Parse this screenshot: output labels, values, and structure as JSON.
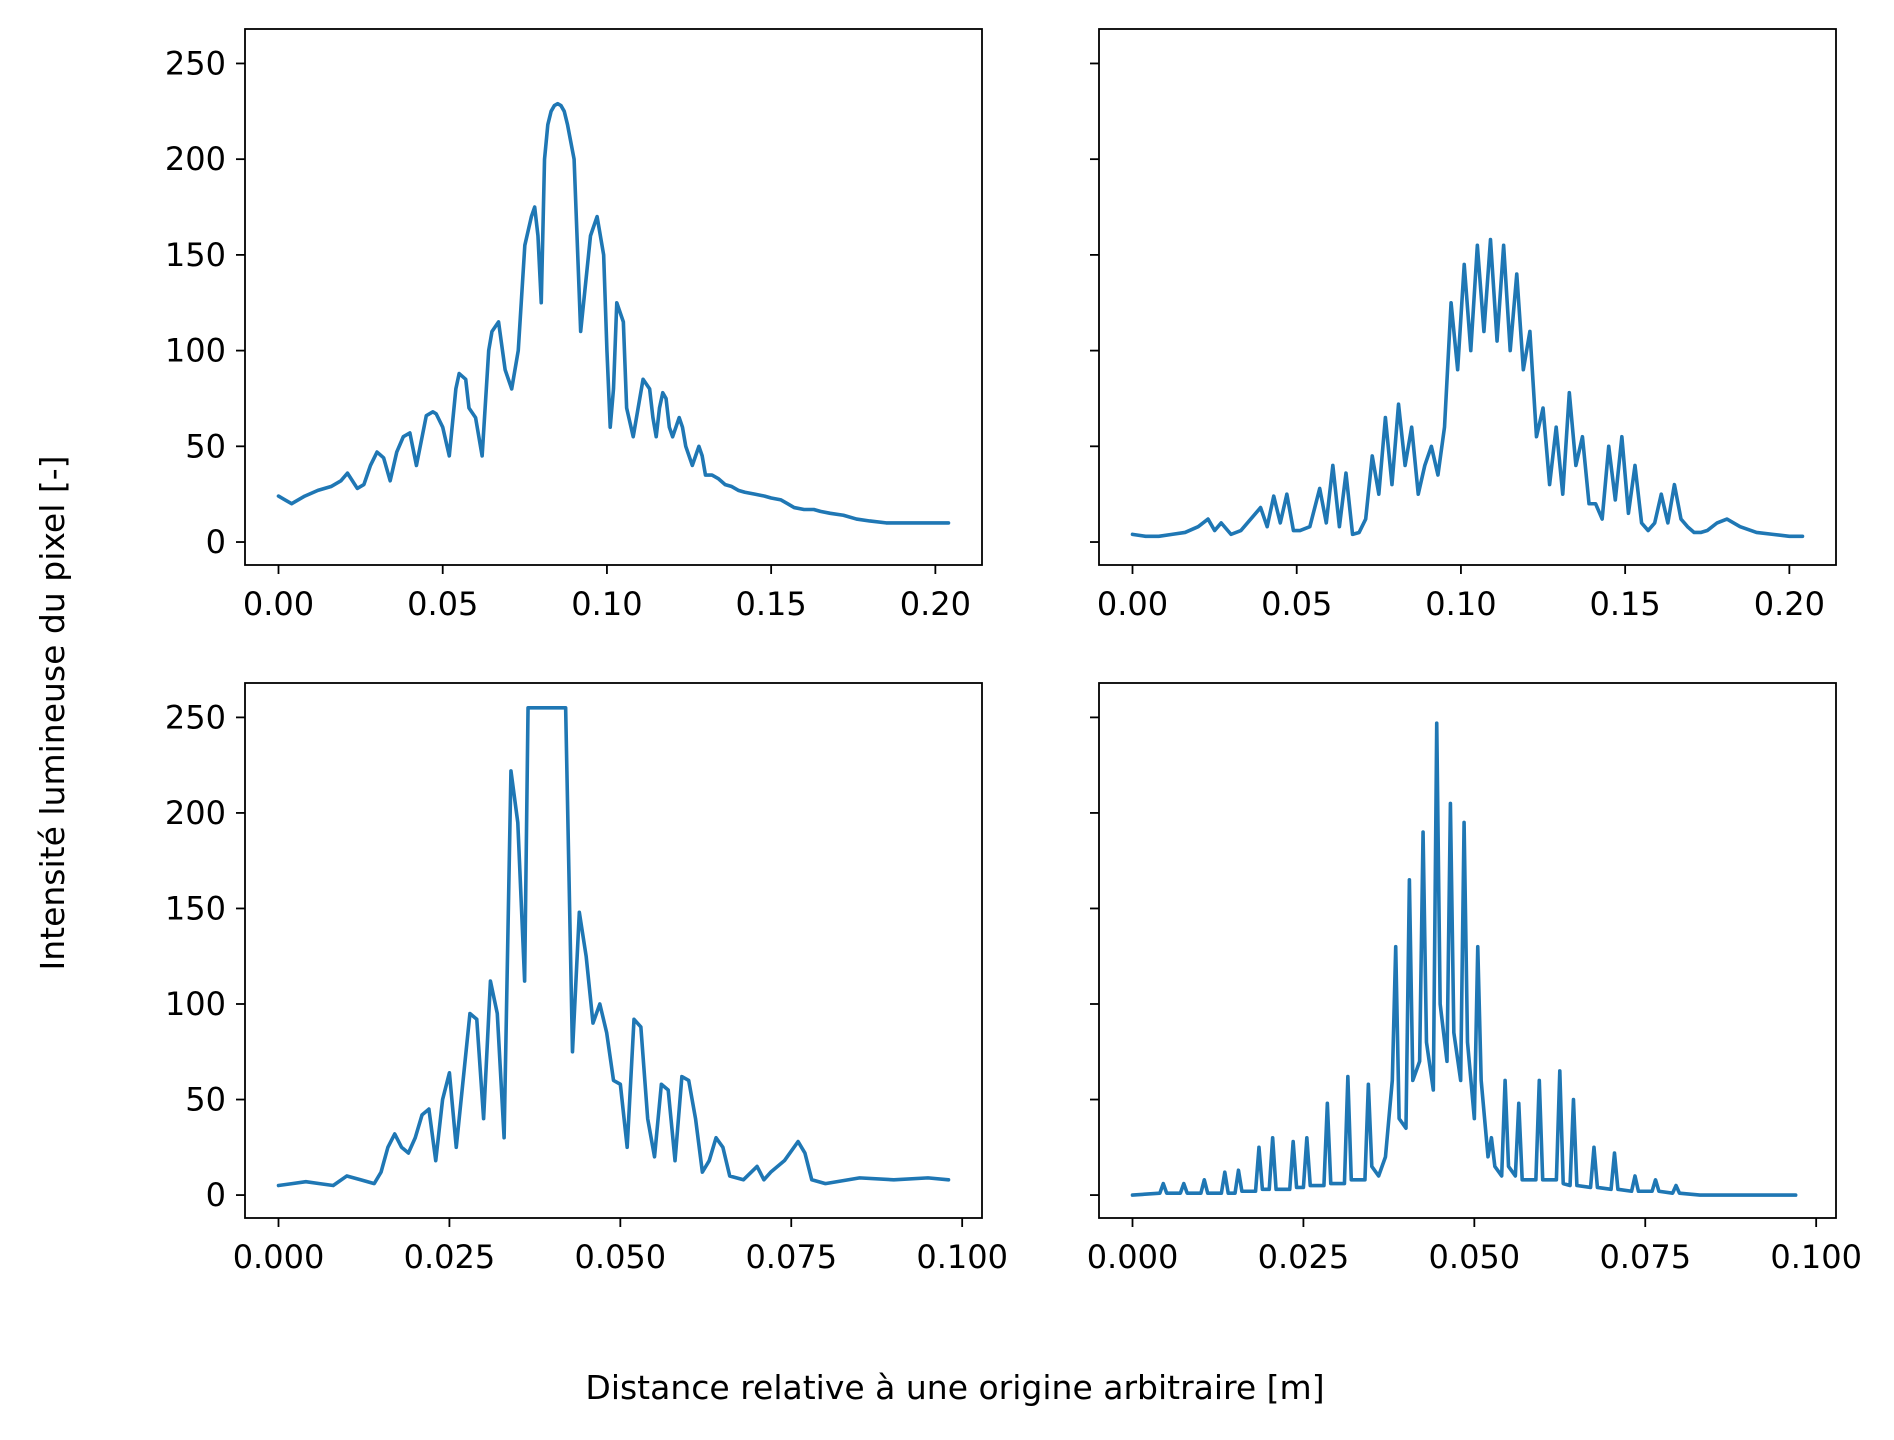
{
  "figure": {
    "ylabel": "Intensité lumineuse du pixel [-]",
    "xlabel": "Distance relative à une origine arbitraire [m]",
    "line_color": "#1f77b4"
  },
  "chart_data": [
    {
      "type": "line",
      "position": "top-left",
      "ylim": [
        -12,
        268
      ],
      "xlim": [
        -0.0102,
        0.2142
      ],
      "xticks": [
        0.0,
        0.05,
        0.1,
        0.15,
        0.2
      ],
      "xtick_labels": [
        "0.00",
        "0.05",
        "0.10",
        "0.15",
        "0.20"
      ],
      "yticks": [
        0,
        50,
        100,
        150,
        200,
        250
      ],
      "ytick_labels": [
        "0",
        "50",
        "100",
        "150",
        "200",
        "250"
      ],
      "show_y_tick_labels": true,
      "series": [
        {
          "x": [
            0.0,
            0.002,
            0.004,
            0.008,
            0.012,
            0.016,
            0.019,
            0.021,
            0.024,
            0.026,
            0.028,
            0.03,
            0.032,
            0.034,
            0.036,
            0.038,
            0.04,
            0.042,
            0.045,
            0.047,
            0.048,
            0.05,
            0.052,
            0.054,
            0.055,
            0.057,
            0.058,
            0.06,
            0.062,
            0.064,
            0.065,
            0.067,
            0.069,
            0.071,
            0.073,
            0.075,
            0.077,
            0.078,
            0.079,
            0.08,
            0.081,
            0.082,
            0.083,
            0.084,
            0.085,
            0.086,
            0.087,
            0.088,
            0.09,
            0.092,
            0.095,
            0.097,
            0.099,
            0.1,
            0.101,
            0.102,
            0.103,
            0.105,
            0.106,
            0.108,
            0.11,
            0.111,
            0.113,
            0.114,
            0.115,
            0.116,
            0.117,
            0.118,
            0.119,
            0.12,
            0.121,
            0.122,
            0.123,
            0.124,
            0.126,
            0.127,
            0.128,
            0.129,
            0.13,
            0.132,
            0.134,
            0.136,
            0.138,
            0.14,
            0.142,
            0.145,
            0.148,
            0.15,
            0.153,
            0.155,
            0.157,
            0.16,
            0.163,
            0.165,
            0.168,
            0.172,
            0.176,
            0.18,
            0.185,
            0.19,
            0.195,
            0.198,
            0.199,
            0.2,
            0.202,
            0.204
          ],
          "y": [
            24,
            22,
            20,
            24,
            27,
            29,
            32,
            36,
            28,
            30,
            40,
            47,
            44,
            32,
            47,
            55,
            57,
            40,
            66,
            68,
            67,
            60,
            45,
            80,
            88,
            85,
            70,
            65,
            45,
            100,
            110,
            115,
            90,
            80,
            100,
            155,
            170,
            175,
            160,
            125,
            200,
            218,
            225,
            228,
            229,
            228,
            225,
            218,
            200,
            110,
            160,
            170,
            150,
            100,
            60,
            80,
            125,
            115,
            70,
            55,
            75,
            85,
            80,
            65,
            55,
            70,
            78,
            75,
            60,
            55,
            60,
            65,
            60,
            50,
            40,
            45,
            50,
            45,
            35,
            35,
            33,
            30,
            29,
            27,
            26,
            25,
            24,
            23,
            22,
            20,
            18,
            17,
            17,
            16,
            15,
            14,
            12,
            11,
            10,
            10,
            10,
            10,
            10,
            10,
            10,
            10
          ],
          "color": "#1f77b4"
        }
      ]
    },
    {
      "type": "line",
      "position": "top-right",
      "ylim": [
        -12,
        268
      ],
      "xlim": [
        -0.0102,
        0.2142
      ],
      "xticks": [
        0.0,
        0.05,
        0.1,
        0.15,
        0.2
      ],
      "xtick_labels": [
        "0.00",
        "0.05",
        "0.10",
        "0.15",
        "0.20"
      ],
      "yticks": [
        0,
        50,
        100,
        150,
        200,
        250
      ],
      "ytick_labels": [
        "0",
        "50",
        "100",
        "150",
        "200",
        "250"
      ],
      "show_y_tick_labels": false,
      "series": [
        {
          "x": [
            0.0,
            0.004,
            0.008,
            0.012,
            0.016,
            0.02,
            0.023,
            0.025,
            0.027,
            0.03,
            0.033,
            0.036,
            0.039,
            0.041,
            0.043,
            0.045,
            0.047,
            0.049,
            0.051,
            0.054,
            0.057,
            0.059,
            0.061,
            0.063,
            0.065,
            0.067,
            0.069,
            0.071,
            0.073,
            0.075,
            0.077,
            0.079,
            0.081,
            0.083,
            0.085,
            0.087,
            0.089,
            0.091,
            0.093,
            0.095,
            0.097,
            0.099,
            0.101,
            0.103,
            0.105,
            0.107,
            0.109,
            0.111,
            0.113,
            0.115,
            0.117,
            0.119,
            0.121,
            0.123,
            0.125,
            0.127,
            0.129,
            0.131,
            0.133,
            0.135,
            0.137,
            0.139,
            0.141,
            0.143,
            0.145,
            0.147,
            0.149,
            0.151,
            0.153,
            0.155,
            0.157,
            0.159,
            0.161,
            0.163,
            0.165,
            0.167,
            0.169,
            0.171,
            0.173,
            0.175,
            0.178,
            0.181,
            0.185,
            0.19,
            0.195,
            0.2,
            0.204
          ],
          "y": [
            4,
            3,
            3,
            4,
            5,
            8,
            12,
            6,
            10,
            4,
            6,
            12,
            18,
            8,
            24,
            10,
            25,
            6,
            6,
            8,
            28,
            10,
            40,
            8,
            36,
            4,
            5,
            12,
            45,
            25,
            65,
            30,
            72,
            40,
            60,
            25,
            40,
            50,
            35,
            60,
            125,
            90,
            145,
            100,
            155,
            110,
            158,
            105,
            155,
            100,
            140,
            90,
            110,
            55,
            70,
            30,
            60,
            25,
            78,
            40,
            55,
            20,
            20,
            12,
            50,
            22,
            55,
            15,
            40,
            10,
            6,
            10,
            25,
            10,
            30,
            12,
            8,
            5,
            5,
            6,
            10,
            12,
            8,
            5,
            4,
            3,
            3
          ],
          "color": "#1f77b4"
        }
      ]
    },
    {
      "type": "line",
      "position": "bottom-left",
      "ylim": [
        -12,
        268
      ],
      "xlim": [
        -0.0049,
        0.1029
      ],
      "xticks": [
        0.0,
        0.025,
        0.05,
        0.075,
        0.1
      ],
      "xtick_labels": [
        "0.000",
        "0.025",
        "0.050",
        "0.075",
        "0.100"
      ],
      "yticks": [
        0,
        50,
        100,
        150,
        200,
        250
      ],
      "ytick_labels": [
        "0",
        "50",
        "100",
        "150",
        "200",
        "250"
      ],
      "show_y_tick_labels": true,
      "series": [
        {
          "x": [
            0.0,
            0.002,
            0.004,
            0.006,
            0.008,
            0.01,
            0.012,
            0.014,
            0.015,
            0.016,
            0.017,
            0.018,
            0.019,
            0.02,
            0.021,
            0.022,
            0.023,
            0.024,
            0.025,
            0.026,
            0.027,
            0.028,
            0.029,
            0.03,
            0.031,
            0.032,
            0.033,
            0.034,
            0.035,
            0.036,
            0.0365,
            0.037,
            0.038,
            0.04,
            0.041,
            0.042,
            0.043,
            0.044,
            0.045,
            0.046,
            0.047,
            0.048,
            0.049,
            0.05,
            0.051,
            0.052,
            0.053,
            0.054,
            0.055,
            0.056,
            0.057,
            0.058,
            0.059,
            0.06,
            0.061,
            0.062,
            0.063,
            0.064,
            0.065,
            0.066,
            0.068,
            0.07,
            0.071,
            0.072,
            0.074,
            0.076,
            0.077,
            0.078,
            0.08,
            0.085,
            0.09,
            0.095,
            0.098
          ],
          "y": [
            5,
            6,
            7,
            6,
            5,
            10,
            8,
            6,
            12,
            25,
            32,
            25,
            22,
            30,
            42,
            45,
            18,
            50,
            64,
            25,
            60,
            95,
            92,
            40,
            112,
            95,
            30,
            222,
            195,
            112,
            255,
            255,
            255,
            255,
            255,
            255,
            75,
            148,
            125,
            90,
            100,
            85,
            60,
            58,
            25,
            92,
            88,
            40,
            20,
            58,
            55,
            18,
            62,
            60,
            40,
            12,
            18,
            30,
            25,
            10,
            8,
            15,
            8,
            12,
            18,
            28,
            22,
            8,
            6,
            9,
            8,
            9,
            8
          ],
          "color": "#1f77b4"
        }
      ]
    },
    {
      "type": "line",
      "position": "bottom-right",
      "ylim": [
        -12,
        268
      ],
      "xlim": [
        -0.0049,
        0.1029
      ],
      "xticks": [
        0.0,
        0.025,
        0.05,
        0.075,
        0.1
      ],
      "xtick_labels": [
        "0.000",
        "0.025",
        "0.050",
        "0.075",
        "0.100"
      ],
      "yticks": [
        0,
        50,
        100,
        150,
        200,
        250
      ],
      "ytick_labels": [
        "0",
        "50",
        "100",
        "150",
        "200",
        "250"
      ],
      "show_y_tick_labels": false,
      "series": [
        {
          "x": [
            0.0,
            0.004,
            0.0045,
            0.005,
            0.007,
            0.0075,
            0.008,
            0.01,
            0.0105,
            0.011,
            0.013,
            0.0135,
            0.014,
            0.015,
            0.0155,
            0.016,
            0.018,
            0.0185,
            0.019,
            0.02,
            0.0205,
            0.021,
            0.023,
            0.0235,
            0.024,
            0.025,
            0.0255,
            0.026,
            0.028,
            0.0285,
            0.029,
            0.031,
            0.0315,
            0.032,
            0.034,
            0.0345,
            0.035,
            0.036,
            0.037,
            0.038,
            0.0385,
            0.039,
            0.04,
            0.0405,
            0.041,
            0.042,
            0.0425,
            0.043,
            0.044,
            0.0445,
            0.045,
            0.046,
            0.0465,
            0.047,
            0.048,
            0.0485,
            0.049,
            0.05,
            0.0505,
            0.051,
            0.052,
            0.0525,
            0.053,
            0.054,
            0.0545,
            0.055,
            0.056,
            0.0565,
            0.057,
            0.059,
            0.0595,
            0.06,
            0.062,
            0.0625,
            0.063,
            0.064,
            0.0645,
            0.065,
            0.067,
            0.0675,
            0.068,
            0.07,
            0.0705,
            0.071,
            0.073,
            0.0735,
            0.074,
            0.076,
            0.0765,
            0.077,
            0.079,
            0.0795,
            0.08,
            0.083,
            0.09,
            0.097
          ],
          "y": [
            0,
            1,
            6,
            1,
            1,
            6,
            1,
            1,
            8,
            1,
            1,
            12,
            1,
            1,
            13,
            2,
            2,
            25,
            3,
            3,
            30,
            3,
            3,
            28,
            4,
            4,
            30,
            5,
            5,
            48,
            6,
            6,
            62,
            8,
            8,
            58,
            15,
            10,
            20,
            60,
            130,
            40,
            35,
            165,
            60,
            70,
            190,
            80,
            55,
            247,
            100,
            70,
            205,
            85,
            60,
            195,
            80,
            40,
            130,
            60,
            20,
            30,
            15,
            10,
            60,
            15,
            10,
            48,
            8,
            8,
            60,
            8,
            8,
            65,
            6,
            5,
            50,
            5,
            4,
            25,
            4,
            3,
            22,
            3,
            2,
            10,
            2,
            2,
            8,
            2,
            1,
            5,
            1,
            0,
            0,
            0
          ],
          "color": "#1f77b4"
        }
      ]
    }
  ]
}
